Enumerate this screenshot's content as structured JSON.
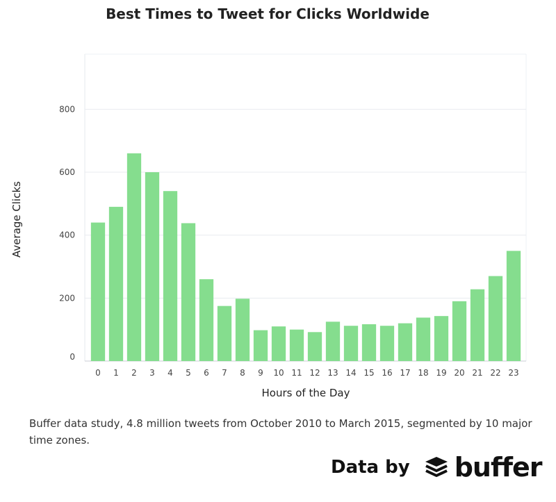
{
  "chart_data": {
    "type": "bar",
    "title": "Best Times to Tweet for Clicks Worldwide",
    "xlabel": "Hours of the Day",
    "ylabel": "Average Clicks",
    "categories": [
      "0",
      "1",
      "2",
      "3",
      "4",
      "5",
      "6",
      "7",
      "8",
      "9",
      "10",
      "11",
      "12",
      "13",
      "14",
      "15",
      "16",
      "17",
      "18",
      "19",
      "20",
      "21",
      "22",
      "23"
    ],
    "values": [
      440,
      490,
      660,
      600,
      540,
      438,
      260,
      175,
      198,
      98,
      110,
      100,
      92,
      125,
      112,
      117,
      112,
      120,
      138,
      143,
      190,
      228,
      270,
      350
    ],
    "yticks": [
      0,
      200,
      400,
      600,
      800
    ],
    "ylim": [
      0,
      975
    ],
    "grid": true,
    "bar_color": "#85dd8e"
  },
  "caption": "Buffer data study, 4.8 million tweets from October 2010 to March 2015, segmented by 10 major time zones.",
  "brand": {
    "prefix": "Data by",
    "name": "buffer",
    "logo_icon": "buffer-stack-icon"
  }
}
